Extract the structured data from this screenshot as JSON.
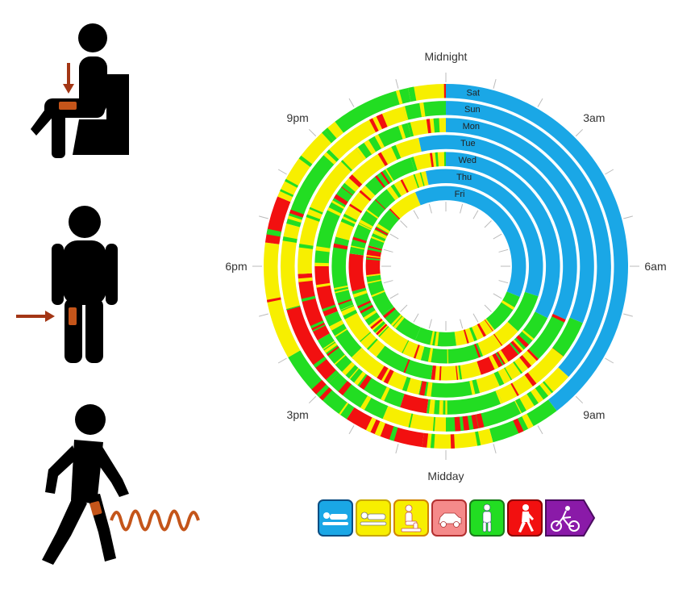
{
  "chart_data": {
    "type": "radial-heatmap",
    "title": "",
    "clock_labels": [
      {
        "text": "Midnight",
        "hour": 0
      },
      {
        "text": "3am",
        "hour": 3
      },
      {
        "text": "6am",
        "hour": 6
      },
      {
        "text": "9am",
        "hour": 9
      },
      {
        "text": "Midday",
        "hour": 12
      },
      {
        "text": "3pm",
        "hour": 15
      },
      {
        "text": "6pm",
        "hour": 18
      },
      {
        "text": "9pm",
        "hour": 21
      }
    ],
    "days": [
      "Sat",
      "Sun",
      "Mon",
      "Tue",
      "Wed",
      "Thu",
      "Fri"
    ],
    "activities": [
      {
        "key": "sleep",
        "icon": "lying-person-icon",
        "color": "#1aa7e6"
      },
      {
        "key": "lying",
        "icon": "lying-person-icon",
        "color": "#f7ef00"
      },
      {
        "key": "sitting",
        "icon": "sitting-person-icon",
        "color": "#f7ef00"
      },
      {
        "key": "driving",
        "icon": "car-icon",
        "color": "#f58a8a"
      },
      {
        "key": "standing",
        "icon": "standing-person-icon",
        "color": "#22dd22"
      },
      {
        "key": "walking",
        "icon": "walking-person-icon",
        "color": "#f21010"
      },
      {
        "key": "cycling",
        "icon": "cyclist-icon",
        "color": "#8a1aa8"
      }
    ],
    "rings": [
      {
        "day": "Sat",
        "segments": [
          [
            0,
            9.5,
            "sleep"
          ],
          [
            9.5,
            11,
            "standing"
          ],
          [
            11,
            12.5,
            "sitting"
          ],
          [
            12.5,
            14.2,
            "walking"
          ],
          [
            14.2,
            16,
            "standing"
          ],
          [
            16,
            18.5,
            "sitting"
          ],
          [
            18.5,
            19.5,
            "walking"
          ],
          [
            19.5,
            21.5,
            "sitting"
          ],
          [
            21.5,
            23.2,
            "standing"
          ],
          [
            23.2,
            24,
            "sitting"
          ]
        ]
      },
      {
        "day": "Sun",
        "segments": [
          [
            0,
            8.8,
            "sleep"
          ],
          [
            8.8,
            10.2,
            "sitting"
          ],
          [
            10.2,
            12,
            "standing"
          ],
          [
            12,
            13.5,
            "sitting"
          ],
          [
            13.5,
            15,
            "standing"
          ],
          [
            15,
            17,
            "walking"
          ],
          [
            17,
            19,
            "sitting"
          ],
          [
            19,
            21,
            "standing"
          ],
          [
            21,
            23,
            "sitting"
          ],
          [
            23,
            24,
            "standing"
          ]
        ]
      },
      {
        "day": "Mon",
        "segments": [
          [
            0,
            7.5,
            "sleep"
          ],
          [
            7.5,
            8.5,
            "standing"
          ],
          [
            8.5,
            10.5,
            "sitting"
          ],
          [
            10.5,
            12.5,
            "standing"
          ],
          [
            12.5,
            13.2,
            "walking"
          ],
          [
            13.2,
            16,
            "standing"
          ],
          [
            16,
            17.8,
            "walking"
          ],
          [
            17.8,
            21.5,
            "sitting"
          ],
          [
            21.5,
            23,
            "standing"
          ],
          [
            23,
            24,
            "sitting"
          ]
        ]
      },
      {
        "day": "Tue",
        "segments": [
          [
            0,
            7.6,
            "sleep"
          ],
          [
            7.6,
            9,
            "standing"
          ],
          [
            9,
            11,
            "sitting"
          ],
          [
            11,
            12.8,
            "standing"
          ],
          [
            12.8,
            15,
            "sitting"
          ],
          [
            15,
            16.5,
            "standing"
          ],
          [
            16.5,
            18,
            "walking"
          ],
          [
            18,
            20.5,
            "standing"
          ],
          [
            20.5,
            23.2,
            "sitting"
          ],
          [
            23.2,
            24,
            "sleep"
          ]
        ]
      },
      {
        "day": "Wed",
        "segments": [
          [
            0,
            7.8,
            "sleep"
          ],
          [
            7.8,
            9.2,
            "standing"
          ],
          [
            9.2,
            10.8,
            "walking"
          ],
          [
            10.8,
            12.5,
            "sitting"
          ],
          [
            12.5,
            14.5,
            "standing"
          ],
          [
            14.5,
            16.5,
            "sitting"
          ],
          [
            16.5,
            19,
            "standing"
          ],
          [
            19,
            21,
            "sitting"
          ],
          [
            21,
            22.8,
            "standing"
          ],
          [
            22.8,
            24,
            "sitting"
          ]
        ]
      },
      {
        "day": "Thu",
        "segments": [
          [
            0,
            7.2,
            "sleep"
          ],
          [
            7.2,
            8.8,
            "standing"
          ],
          [
            8.8,
            10.5,
            "sitting"
          ],
          [
            10.5,
            13,
            "standing"
          ],
          [
            13,
            15.5,
            "sitting"
          ],
          [
            15.5,
            17,
            "standing"
          ],
          [
            17,
            18.5,
            "walking"
          ],
          [
            18.5,
            21.5,
            "standing"
          ],
          [
            21.5,
            23.2,
            "sitting"
          ],
          [
            23.2,
            24,
            "sleep"
          ]
        ]
      },
      {
        "day": "Fri",
        "segments": [
          [
            0,
            7.5,
            "sleep"
          ],
          [
            7.5,
            9.5,
            "standing"
          ],
          [
            9.5,
            11.5,
            "sitting"
          ],
          [
            11.5,
            13.5,
            "standing"
          ],
          [
            13.5,
            15.5,
            "standing"
          ],
          [
            15.5,
            17.5,
            "standing"
          ],
          [
            17.5,
            19,
            "walking"
          ],
          [
            19,
            21,
            "standing"
          ],
          [
            21,
            22.5,
            "sitting"
          ],
          [
            22.5,
            24,
            "sleep"
          ]
        ]
      }
    ]
  }
}
